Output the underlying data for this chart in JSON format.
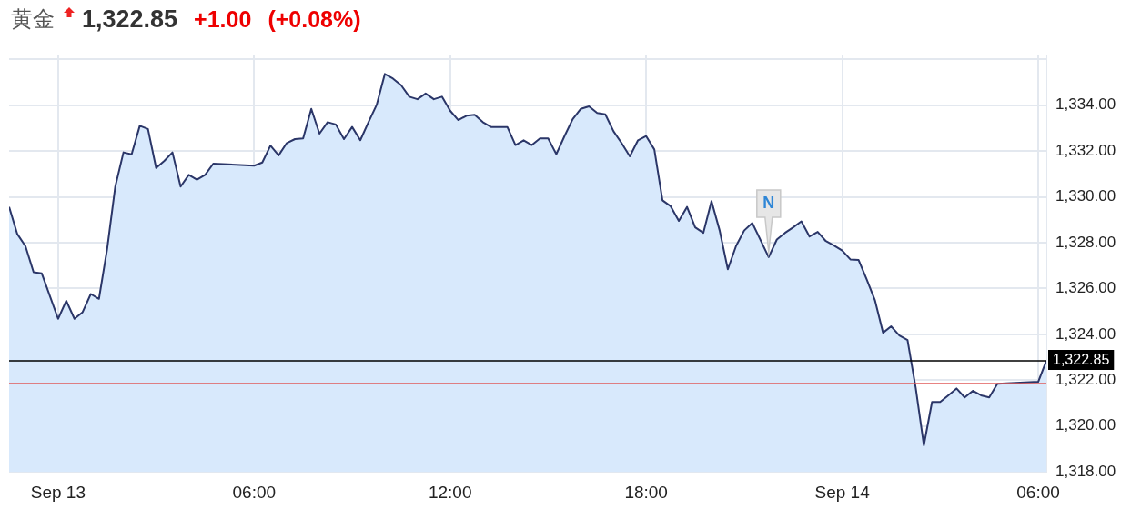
{
  "chart_data": {
    "type": "area",
    "title": "黄金",
    "annotations": [
      "1,322.85",
      "+1.00",
      "(+0.08%)",
      {
        "text": "N",
        "x": "--09-13T21:45",
        "y": 1327.37
      }
    ],
    "series": [
      {
        "color": "#2b3668",
        "x": [
          "--09-12T22:30",
          "--09-12T22:45",
          "--09-12T23:00",
          "--09-12T23:15",
          "--09-12T23:30",
          "--09-13T00:00",
          "--09-13T00:15",
          "--09-13T00:30",
          "--09-13T00:45",
          "--09-13T01:00",
          "--09-13T01:15",
          "--09-13T01:30",
          "--09-13T01:45",
          "--09-13T02:00",
          "--09-13T02:15",
          "--09-13T02:30",
          "--09-13T02:45",
          "--09-13T03:00",
          "--09-13T03:15",
          "--09-13T03:30",
          "--09-13T03:45",
          "--09-13T04:00",
          "--09-13T04:15",
          "--09-13T04:30",
          "--09-13T04:45",
          "--09-13T06:00",
          "--09-13T06:15",
          "--09-13T06:30",
          "--09-13T06:45",
          "--09-13T07:00",
          "--09-13T07:15",
          "--09-13T07:30",
          "--09-13T07:45",
          "--09-13T08:00",
          "--09-13T08:15",
          "--09-13T08:30",
          "--09-13T08:45",
          "--09-13T09:00",
          "--09-13T09:15",
          "--09-13T09:30",
          "--09-13T09:45",
          "--09-13T10:00",
          "--09-13T10:15",
          "--09-13T10:30",
          "--09-13T10:45",
          "--09-13T11:00",
          "--09-13T11:15",
          "--09-13T11:30",
          "--09-13T11:45",
          "--09-13T12:00",
          "--09-13T12:15",
          "--09-13T12:30",
          "--09-13T12:45",
          "--09-13T13:00",
          "--09-13T13:15",
          "--09-13T13:30",
          "--09-13T13:45",
          "--09-13T14:00",
          "--09-13T14:15",
          "--09-13T14:30",
          "--09-13T14:45",
          "--09-13T15:00",
          "--09-13T15:15",
          "--09-13T15:30",
          "--09-13T15:45",
          "--09-13T16:00",
          "--09-13T16:15",
          "--09-13T16:30",
          "--09-13T16:45",
          "--09-13T17:00",
          "--09-13T17:15",
          "--09-13T17:30",
          "--09-13T17:45",
          "--09-13T18:00",
          "--09-13T18:15",
          "--09-13T18:30",
          "--09-13T18:45",
          "--09-13T19:00",
          "--09-13T19:15",
          "--09-13T19:30",
          "--09-13T19:45",
          "--09-13T20:00",
          "--09-13T20:15",
          "--09-13T20:30",
          "--09-13T20:45",
          "--09-13T21:00",
          "--09-13T21:15",
          "--09-13T21:45",
          "--09-13T22:00",
          "--09-13T22:15",
          "--09-13T22:30",
          "--09-13T22:45",
          "--09-13T23:00",
          "--09-13T23:15",
          "--09-13T23:30",
          "--09-13T23:45",
          "--09-14T00:00",
          "--09-14T00:15",
          "--09-14T00:30",
          "--09-14T00:45",
          "--09-14T01:00",
          "--09-14T01:15",
          "--09-14T01:30",
          "--09-14T01:45",
          "--09-14T02:00",
          "--09-14T02:15",
          "--09-14T02:30",
          "--09-14T02:45",
          "--09-14T03:00",
          "--09-14T03:15",
          "--09-14T03:30",
          "--09-14T03:45",
          "--09-14T04:00",
          "--09-14T04:15",
          "--09-14T04:30",
          "--09-14T04:45",
          "--09-14T06:00",
          "--09-14T06:15"
        ],
        "values": [
          1329.56,
          1328.38,
          1327.85,
          1326.71,
          1326.66,
          1324.68,
          1325.47,
          1324.68,
          1324.97,
          1325.76,
          1325.55,
          1327.72,
          1330.45,
          1331.94,
          1331.86,
          1333.1,
          1332.96,
          1331.26,
          1331.57,
          1331.94,
          1330.45,
          1330.96,
          1330.75,
          1330.96,
          1331.45,
          1331.36,
          1331.5,
          1332.24,
          1331.81,
          1332.35,
          1332.52,
          1332.55,
          1333.84,
          1332.76,
          1333.26,
          1333.16,
          1332.52,
          1333.05,
          1332.47,
          1333.26,
          1334.01,
          1335.36,
          1335.16,
          1334.87,
          1334.37,
          1334.26,
          1334.51,
          1334.26,
          1334.37,
          1333.76,
          1333.35,
          1333.54,
          1333.58,
          1333.26,
          1333.05,
          1333.05,
          1333.05,
          1332.26,
          1332.47,
          1332.26,
          1332.55,
          1332.55,
          1331.86,
          1332.65,
          1333.39,
          1333.84,
          1333.95,
          1333.66,
          1333.6,
          1332.86,
          1332.34,
          1331.77,
          1332.47,
          1332.65,
          1332.07,
          1329.85,
          1329.59,
          1328.95,
          1329.56,
          1328.67,
          1328.43,
          1329.81,
          1328.53,
          1326.84,
          1327.85,
          1328.53,
          1328.86,
          1327.37,
          1328.14,
          1328.43,
          1328.67,
          1328.93,
          1328.27,
          1328.47,
          1328.07,
          1327.88,
          1327.66,
          1327.27,
          1327.25,
          1326.4,
          1325.5,
          1324.07,
          1324.35,
          1323.95,
          1323.75,
          1321.67,
          1319.16,
          1321.05,
          1321.05,
          1321.34,
          1321.64,
          1321.25,
          1321.54,
          1321.34,
          1321.25,
          1321.84,
          1321.93,
          1322.85
        ]
      }
    ],
    "xlim": [
      "--09-12T22:30",
      "--09-14T06:15"
    ],
    "xticks": [
      {
        "value": "--09-13T00:00",
        "label": "Sep 13"
      },
      {
        "value": "--09-13T06:00",
        "label": "06:00"
      },
      {
        "value": "--09-13T12:00",
        "label": "12:00"
      },
      {
        "value": "--09-13T18:00",
        "label": "18:00"
      },
      {
        "value": "--09-14T00:00",
        "label": "Sep 14"
      },
      {
        "value": "--09-14T06:00",
        "label": "06:00"
      }
    ],
    "ylim": [
      1318,
      1336.2
    ],
    "yticks": [
      {
        "value": 1318,
        "label": "1,318.00"
      },
      {
        "value": 1320,
        "label": "1,320.00"
      },
      {
        "value": 1322,
        "label": "1,322.00"
      },
      {
        "value": 1324,
        "label": "1,324.00"
      },
      {
        "value": 1326,
        "label": "1,326.00"
      },
      {
        "value": 1328,
        "label": "1,328.00"
      },
      {
        "value": 1330,
        "label": "1,330.00"
      },
      {
        "value": 1332,
        "label": "1,332.00"
      },
      {
        "value": 1334,
        "label": "1,334.00"
      },
      {
        "value": 1336,
        "label": null
      }
    ],
    "ref_lines": [
      {
        "axis": "y",
        "value": 1322.85,
        "label": "1,322.85",
        "color": "#000000"
      },
      {
        "axis": "y",
        "value": 1321.85,
        "color": "#e05a5a"
      }
    ],
    "grid": true,
    "legend": false,
    "marker": "none",
    "line_style": "solid"
  }
}
